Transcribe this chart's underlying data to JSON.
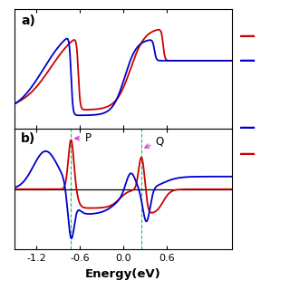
{
  "xlim": [
    -1.5,
    1.5
  ],
  "xlabel": "Energy(eV)",
  "panel_a_label": "a)",
  "panel_b_label": "b)",
  "point_P_label": "P",
  "point_Q_label": "Q",
  "red_color": "#cc0000",
  "blue_color": "#0000cc",
  "green_dashed_color": "#00bb55",
  "annotation_color": "#cc44cc",
  "background_color": "#ffffff"
}
